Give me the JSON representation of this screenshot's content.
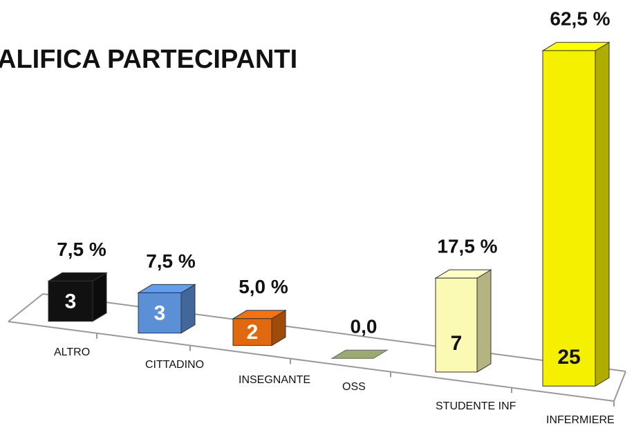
{
  "chart_data": {
    "type": "bar3d",
    "title": "ALIFICA PARTECIPANTI",
    "categories": [
      "ALTRO",
      "CITTADINO",
      "INSEGNANTE",
      "OSS",
      "STUDENTE INF",
      "INFERMIERE"
    ],
    "values": [
      3,
      3,
      2,
      0,
      7,
      25
    ],
    "percent_values": [
      7.5,
      7.5,
      5.0,
      0.0,
      17.5,
      62.5
    ],
    "percent_labels": [
      "7,5 %",
      "7,5 %",
      "5,0 %",
      "0,0",
      "17,5 %",
      "62,5 %"
    ],
    "colors": [
      "#111111",
      "#5b8fd6",
      "#e0680f",
      "#9aaa70",
      "#fafab4",
      "#f5ef00"
    ]
  }
}
